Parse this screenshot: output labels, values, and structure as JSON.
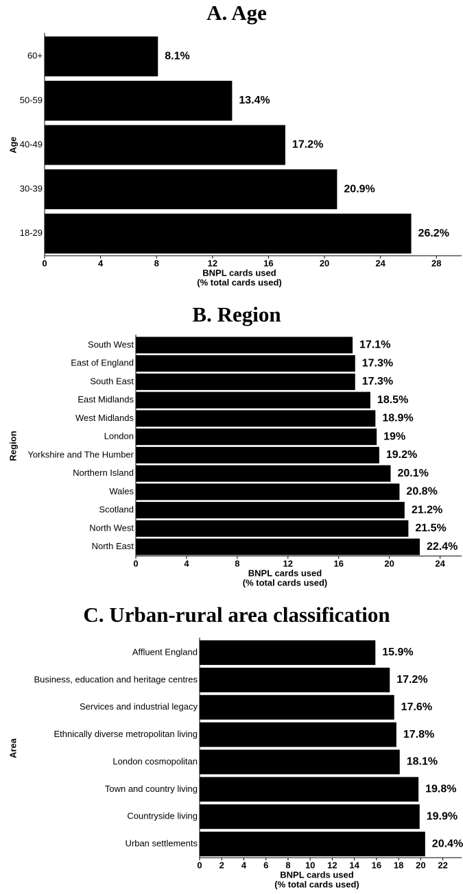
{
  "chart_data": [
    {
      "type": "barh",
      "title": "A. Age",
      "ylabel": "Age",
      "xlabel": [
        "BNPL cards used",
        "(% total cards used)"
      ],
      "categories": [
        "60+",
        "50-59",
        "40-49",
        "30-39",
        "18-29"
      ],
      "values": [
        8.1,
        13.4,
        17.2,
        20.9,
        26.2
      ],
      "value_labels": [
        "8.1%",
        "13.4%",
        "17.2%",
        "20.9%",
        "26.2%"
      ],
      "color": "#000000",
      "xlim": [
        0,
        29.8
      ],
      "xticks": [
        0,
        4,
        8,
        12,
        16,
        20,
        24,
        28
      ]
    },
    {
      "type": "barh",
      "title": "B. Region",
      "ylabel": "Region",
      "xlabel": [
        "BNPL cards used",
        "(% total cards used)"
      ],
      "categories": [
        "South West",
        "East of England",
        "South East",
        "East Midlands",
        "West Midlands",
        "London",
        "Yorkshire and The Humber",
        "Northern Island",
        "Wales",
        "Scotland",
        "North West",
        "North East"
      ],
      "values": [
        17.1,
        17.3,
        17.3,
        18.5,
        18.9,
        19,
        19.2,
        20.1,
        20.8,
        21.2,
        21.5,
        22.4
      ],
      "value_labels": [
        "17.1%",
        "17.3%",
        "17.3%",
        "18.5%",
        "18.9%",
        "19%",
        "19.2%",
        "20.1%",
        "20.8%",
        "21.2%",
        "21.5%",
        "22.4%"
      ],
      "color": "#000000",
      "xlim": [
        0,
        25.7
      ],
      "xticks": [
        0,
        4,
        8,
        12,
        16,
        20,
        24
      ]
    },
    {
      "type": "barh",
      "title": "C. Urban-rural area classification",
      "ylabel": "Area",
      "xlabel": [
        "BNPL cards used",
        "(% total cards used)"
      ],
      "categories": [
        "Affluent England",
        "Business, education and heritage centres",
        "Services and industrial legacy",
        "Ethnically diverse metropolitan  living",
        "London cosmopolitan",
        "Town and country living",
        "Countryside living",
        "Urban settlements"
      ],
      "values": [
        15.9,
        17.2,
        17.6,
        17.8,
        18.1,
        19.8,
        19.9,
        20.4
      ],
      "value_labels": [
        "15.9%",
        "17.2%",
        "17.6%",
        "17.8%",
        "18.1%",
        "19.8%",
        "19.9%",
        "20.4%"
      ],
      "color": "#000000",
      "xlim": [
        0,
        23.7
      ],
      "xticks": [
        0,
        2,
        4,
        6,
        8,
        10,
        12,
        14,
        16,
        18,
        20,
        22
      ]
    }
  ]
}
